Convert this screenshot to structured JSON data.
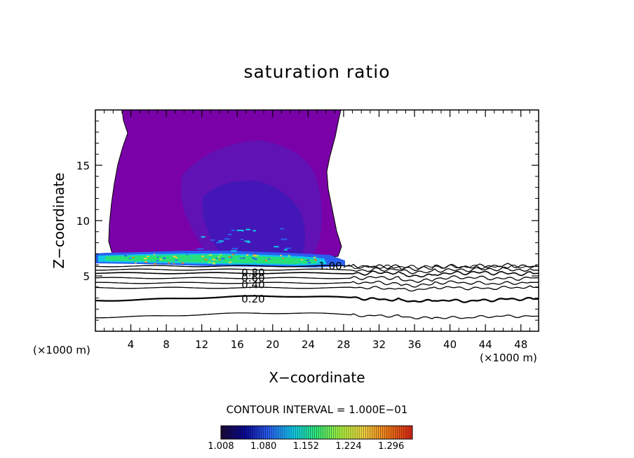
{
  "chart_data": {
    "type": "heatmap",
    "title": "saturation ratio",
    "xlabel": "X−coordinate",
    "ylabel": "Z−coordinate",
    "x_unit_label": "(×1000 m)",
    "xlim": [
      0,
      50
    ],
    "ylim": [
      0,
      20
    ],
    "x_ticks": [
      4,
      8,
      12,
      16,
      20,
      24,
      28,
      32,
      36,
      40,
      44,
      48
    ],
    "y_ticks": [
      5,
      10,
      15
    ],
    "contour_interval_label": "CONTOUR INTERVAL = 1.000E−01",
    "contour_labels": [
      {
        "text": "1.00",
        "x": 26.5,
        "z": 5.9
      },
      {
        "text": "0.80",
        "x": 17.8,
        "z": 5.3
      },
      {
        "text": "0.60",
        "x": 17.8,
        "z": 4.8
      },
      {
        "text": "0.40",
        "x": 17.8,
        "z": 4.2
      },
      {
        "text": "0.20",
        "x": 17.8,
        "z": 2.9
      }
    ],
    "colorbar": {
      "min": 1.008,
      "max": 1.332,
      "tick_labels": [
        "1.008",
        "1.080",
        "1.152",
        "1.224",
        "1.296"
      ],
      "colors": [
        "#1a0a3a",
        "#0a0a9a",
        "#2a60f0",
        "#10c8e8",
        "#30e878",
        "#a8f040",
        "#f0d040",
        "#f07818",
        "#d82818"
      ]
    },
    "region_colors": {
      "supersaturated": "#7a00a8",
      "core": "#5a18b8",
      "deep_core": "#3818b8",
      "green_band": "#28e078",
      "cyan_band": "#10c8e8",
      "blue_band": "#2a60f0"
    }
  }
}
